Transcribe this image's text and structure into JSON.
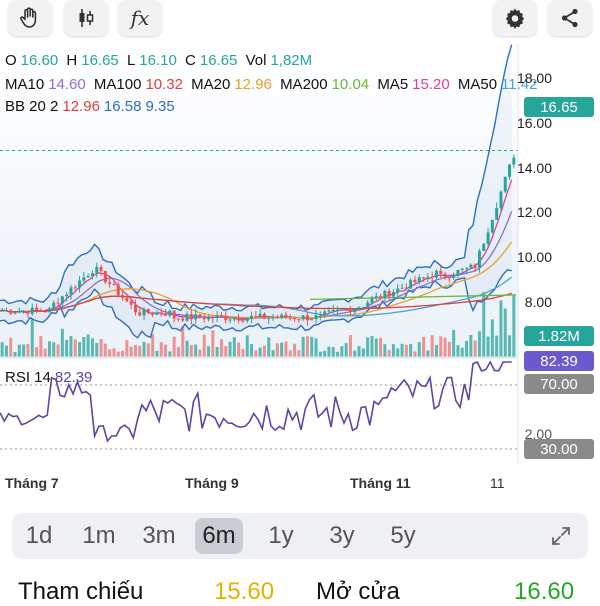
{
  "toolbar": {
    "tools": [
      "hand-icon",
      "candlestick-icon",
      "function-icon"
    ],
    "function_label": "fx",
    "right_tools": [
      "gear-icon",
      "share-icon"
    ]
  },
  "ohlc": {
    "o_label": "O",
    "o": "16.60",
    "h_label": "H",
    "h": "16.65",
    "l_label": "L",
    "l": "16.10",
    "c_label": "C",
    "c": "16.65",
    "vol_label": "Vol",
    "vol": "1,82M"
  },
  "ma": {
    "ma10_label": "MA10",
    "ma10": "14.60",
    "ma100_label": "MA100",
    "ma100": "10.32",
    "ma20_label": "MA20",
    "ma20": "12.96",
    "ma200_label": "MA200",
    "ma200": "10.04",
    "ma5_label": "MA5",
    "ma5": "15.20",
    "ma50_label": "MA50",
    "ma50": "11.42"
  },
  "bb": {
    "label": "BB 20 2",
    "mid": "12.96",
    "upper": "16.58",
    "lower": "9.35"
  },
  "price_axis": [
    "18.00",
    "16.00",
    "14.00",
    "12.00",
    "10.00",
    "8.00"
  ],
  "tags": {
    "last_price": "16.65",
    "volume": "1.82M",
    "rsi": "82.39",
    "rsi_high": "70.00",
    "rsi_low": "30.00"
  },
  "rsi": {
    "label": "RSI 14",
    "value": "82.39",
    "axis_partial": "2.00"
  },
  "months": [
    "Tháng 7",
    "Tháng 9",
    "Tháng 11",
    "11"
  ],
  "ranges": {
    "items": [
      "1d",
      "1m",
      "3m",
      "6m",
      "1y",
      "3y",
      "5y"
    ],
    "active": "6m"
  },
  "footer": {
    "ref_label": "Tham chiếu",
    "ref_value": "15.60",
    "open_label": "Mở cửa",
    "open_value": "16.60"
  },
  "colors": {
    "up": "#26a69a",
    "down": "#ef5350",
    "bb_band": "#2e6fbf",
    "rsi_line": "#5b45a8",
    "rsi_tag": "#6a5acd",
    "ma10": "#8e6fc9",
    "ma100": "#e0413a",
    "ma20": "#e8a028",
    "ma200": "#69b83a",
    "ma5": "#e0409a",
    "ma50": "#4aa3d8",
    "footer_ref": "#e8b100",
    "footer_open": "#22aa22"
  },
  "chart_data": {
    "type": "candlestick",
    "x_labels": [
      "Tháng 7",
      "Tháng 9",
      "Tháng 11",
      "11"
    ],
    "y_ticks": [
      8,
      10,
      12,
      14,
      16,
      18
    ],
    "last_close": 16.65,
    "rsi_levels": [
      30,
      70
    ],
    "series": [
      {
        "name": "MA10",
        "last": 14.6
      },
      {
        "name": "MA100",
        "last": 10.32
      },
      {
        "name": "MA20",
        "last": 12.96
      },
      {
        "name": "MA200",
        "last": 10.04
      },
      {
        "name": "MA5",
        "last": 15.2
      },
      {
        "name": "MA50",
        "last": 11.42
      }
    ]
  }
}
